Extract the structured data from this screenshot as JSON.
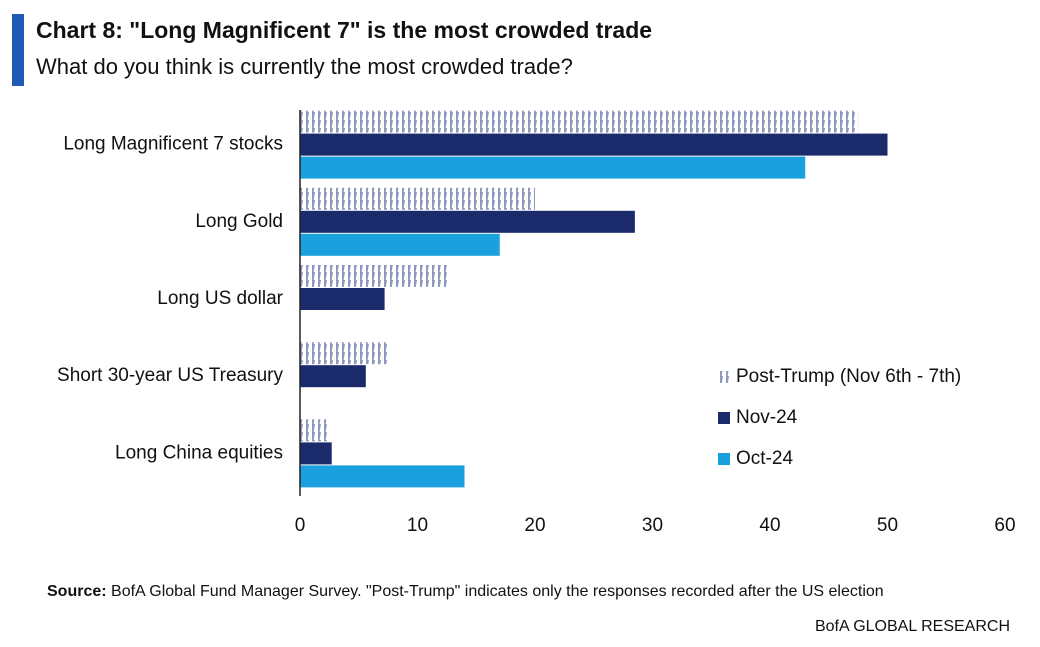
{
  "chart_data": {
    "type": "hbar",
    "title": "Chart 8: \"Long Magnificent 7\" is the most crowded trade",
    "subtitle": "What do you think is currently the most crowded trade?",
    "categories": [
      "Long Magnificent 7 stocks",
      "Long Gold",
      "Long US dollar",
      "Short 30-year US Treasury",
      "Long China equities"
    ],
    "series": [
      {
        "name": "Post-Trump (Nov 6th - 7th)",
        "color": "#8e97bd",
        "pattern": "hatch",
        "values": [
          47.5,
          20,
          12.5,
          7.5,
          2.5
        ]
      },
      {
        "name": "Nov-24",
        "color": "#1b2a6b",
        "values": [
          50,
          28.5,
          7.2,
          5.6,
          2.7
        ]
      },
      {
        "name": "Oct-24",
        "color": "#1aa0dc",
        "values": [
          43,
          17,
          null,
          null,
          14
        ]
      }
    ],
    "xlim": [
      0,
      60
    ],
    "xticks": [
      0,
      10,
      20,
      30,
      40,
      50,
      60
    ],
    "grid": false,
    "legend": "right",
    "source_label": "Source:",
    "source_text": "BofA Global Fund Manager Survey. \"Post-Trump\" indicates only the responses recorded after the US election",
    "footer": "BofA GLOBAL RESEARCH"
  }
}
